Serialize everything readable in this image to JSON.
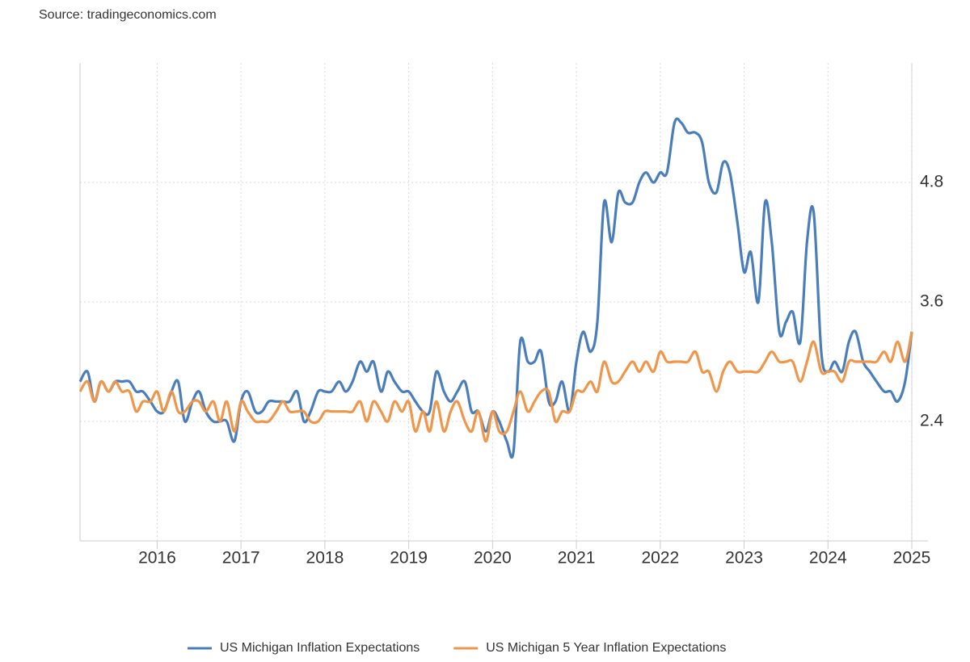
{
  "chart_data": {
    "type": "line",
    "source": "Source: tradingeconomics.com",
    "x": [
      2015.08,
      2015.17,
      2015.25,
      2015.33,
      2015.42,
      2015.5,
      2015.58,
      2015.67,
      2015.75,
      2015.83,
      2015.92,
      2016,
      2016.08,
      2016.17,
      2016.25,
      2016.33,
      2016.42,
      2016.5,
      2016.58,
      2016.67,
      2016.75,
      2016.83,
      2016.92,
      2017,
      2017.08,
      2017.17,
      2017.25,
      2017.33,
      2017.42,
      2017.5,
      2017.58,
      2017.67,
      2017.75,
      2017.83,
      2017.92,
      2018,
      2018.08,
      2018.17,
      2018.25,
      2018.33,
      2018.42,
      2018.5,
      2018.58,
      2018.67,
      2018.75,
      2018.83,
      2018.92,
      2019,
      2019.08,
      2019.17,
      2019.25,
      2019.33,
      2019.42,
      2019.5,
      2019.58,
      2019.67,
      2019.75,
      2019.83,
      2019.92,
      2020,
      2020.08,
      2020.17,
      2020.25,
      2020.33,
      2020.42,
      2020.5,
      2020.58,
      2020.67,
      2020.75,
      2020.83,
      2020.92,
      2021,
      2021.08,
      2021.17,
      2021.25,
      2021.33,
      2021.42,
      2021.5,
      2021.58,
      2021.67,
      2021.75,
      2021.83,
      2021.92,
      2022,
      2022.08,
      2022.17,
      2022.25,
      2022.33,
      2022.42,
      2022.5,
      2022.58,
      2022.67,
      2022.75,
      2022.83,
      2022.92,
      2023,
      2023.08,
      2023.17,
      2023.25,
      2023.33,
      2023.42,
      2023.5,
      2023.58,
      2023.67,
      2023.75,
      2023.83,
      2023.92,
      2024,
      2024.08,
      2024.17,
      2024.25,
      2024.33,
      2024.42,
      2024.5,
      2024.58,
      2024.67,
      2024.75,
      2024.83,
      2024.92,
      2025
    ],
    "series": [
      {
        "name": "US Michigan Inflation Expectations",
        "color": "#4a7ebb",
        "values": [
          2.8,
          2.9,
          2.6,
          2.8,
          2.7,
          2.8,
          2.8,
          2.8,
          2.7,
          2.7,
          2.6,
          2.5,
          2.5,
          2.7,
          2.8,
          2.4,
          2.6,
          2.7,
          2.5,
          2.4,
          2.4,
          2.4,
          2.2,
          2.6,
          2.7,
          2.5,
          2.5,
          2.6,
          2.6,
          2.6,
          2.6,
          2.7,
          2.4,
          2.5,
          2.7,
          2.7,
          2.7,
          2.8,
          2.7,
          2.8,
          3.0,
          2.9,
          3.0,
          2.7,
          2.9,
          2.8,
          2.7,
          2.7,
          2.6,
          2.5,
          2.5,
          2.9,
          2.7,
          2.6,
          2.7,
          2.8,
          2.5,
          2.5,
          2.3,
          2.5,
          2.4,
          2.2,
          2.1,
          3.2,
          3.0,
          3.0,
          3.1,
          2.6,
          2.6,
          2.8,
          2.5,
          3.0,
          3.3,
          3.1,
          3.4,
          4.6,
          4.2,
          4.7,
          4.6,
          4.6,
          4.8,
          4.9,
          4.8,
          4.9,
          4.9,
          5.4,
          5.4,
          5.3,
          5.3,
          5.2,
          4.8,
          4.7,
          5.0,
          4.9,
          4.4,
          3.9,
          4.1,
          3.6,
          4.6,
          4.2,
          3.3,
          3.4,
          3.5,
          3.2,
          4.2,
          4.5,
          3.1,
          2.9,
          3.0,
          2.9,
          3.2,
          3.3,
          3.0,
          2.9,
          2.8,
          2.7,
          2.7,
          2.6,
          2.8,
          3.3
        ]
      },
      {
        "name": "US Michigan 5 Year Inflation Expectations",
        "color": "#f0964a",
        "values": [
          2.7,
          2.8,
          2.6,
          2.8,
          2.7,
          2.8,
          2.7,
          2.7,
          2.5,
          2.6,
          2.6,
          2.7,
          2.5,
          2.7,
          2.5,
          2.5,
          2.6,
          2.6,
          2.5,
          2.6,
          2.4,
          2.6,
          2.3,
          2.6,
          2.5,
          2.4,
          2.4,
          2.4,
          2.5,
          2.6,
          2.5,
          2.5,
          2.5,
          2.4,
          2.4,
          2.5,
          2.5,
          2.5,
          2.5,
          2.5,
          2.6,
          2.4,
          2.6,
          2.5,
          2.4,
          2.6,
          2.5,
          2.6,
          2.3,
          2.5,
          2.3,
          2.6,
          2.3,
          2.5,
          2.6,
          2.4,
          2.3,
          2.5,
          2.2,
          2.5,
          2.3,
          2.3,
          2.5,
          2.7,
          2.5,
          2.6,
          2.7,
          2.7,
          2.4,
          2.5,
          2.5,
          2.7,
          2.7,
          2.8,
          2.7,
          3.0,
          2.8,
          2.8,
          2.9,
          3.0,
          2.9,
          3.0,
          2.9,
          3.1,
          3.0,
          3.0,
          3.0,
          3.0,
          3.1,
          2.9,
          2.9,
          2.7,
          2.9,
          3.0,
          2.9,
          2.9,
          2.9,
          2.9,
          3.0,
          3.1,
          3.0,
          3.0,
          3.0,
          2.8,
          3.0,
          3.2,
          2.9,
          2.9,
          2.9,
          2.8,
          3.0,
          3.0,
          3.0,
          3.0,
          3.0,
          3.1,
          3.0,
          3.2,
          3.0,
          3.3
        ]
      }
    ],
    "xlim": [
      2015.08,
      2025
    ],
    "xticks": [
      2016,
      2017,
      2018,
      2019,
      2020,
      2021,
      2022,
      2023,
      2024,
      2025
    ],
    "ylim": [
      1.2,
      6.0
    ],
    "yticks": [
      2.4,
      3.6,
      4.8
    ],
    "grid": true,
    "legend": "bottom"
  }
}
